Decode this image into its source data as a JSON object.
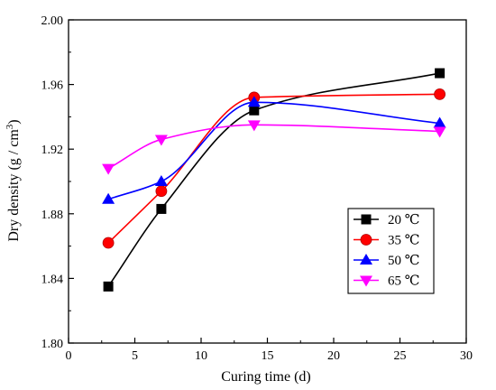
{
  "chart_data": {
    "type": "line",
    "xlabel": "Curing time (d)",
    "ylabel_parts": {
      "main": "Dry density (g / cm",
      "sup": "3",
      "end": ")"
    },
    "xlim": [
      0,
      30
    ],
    "ylim": [
      1.8,
      2.0
    ],
    "xticks": [
      0,
      5,
      10,
      15,
      20,
      25,
      30
    ],
    "xtick_labels": [
      "0",
      "5",
      "10",
      "15",
      "20",
      "25",
      "30"
    ],
    "yticks": [
      1.8,
      1.84,
      1.88,
      1.92,
      1.96,
      2.0
    ],
    "ytick_labels": [
      "1.80",
      "1.84",
      "1.88",
      "1.92",
      "1.96",
      "2.00"
    ],
    "grid": false,
    "legend_position": "bottom-right",
    "x": [
      3,
      7,
      14,
      28
    ],
    "series": [
      {
        "name": "20 ℃",
        "marker": "square",
        "color": "#000000",
        "values": [
          1.835,
          1.883,
          1.944,
          1.967
        ]
      },
      {
        "name": "35 ℃",
        "marker": "circle",
        "color": "#ff0000",
        "values": [
          1.862,
          1.894,
          1.952,
          1.954
        ]
      },
      {
        "name": "50 ℃",
        "marker": "triangle-up",
        "color": "#0000ff",
        "values": [
          1.889,
          1.9,
          1.949,
          1.936
        ]
      },
      {
        "name": "65 ℃",
        "marker": "triangle-down",
        "color": "#ff00ff",
        "values": [
          1.908,
          1.926,
          1.935,
          1.931
        ]
      }
    ]
  }
}
